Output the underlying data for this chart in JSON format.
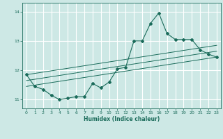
{
  "title": "",
  "xlabel": "Humidex (Indice chaleur)",
  "bg_color": "#cde8e5",
  "line_color": "#1a6b5a",
  "grid_color": "#ffffff",
  "xlim": [
    -0.5,
    23.5
  ],
  "ylim": [
    10.7,
    14.3
  ],
  "yticks": [
    11,
    12,
    13,
    14
  ],
  "xticks": [
    0,
    1,
    2,
    3,
    4,
    5,
    6,
    7,
    8,
    9,
    10,
    11,
    12,
    13,
    14,
    15,
    16,
    17,
    18,
    19,
    20,
    21,
    22,
    23
  ],
  "curve1_x": [
    0,
    1,
    2,
    3,
    4,
    5,
    6,
    7,
    8,
    9,
    10,
    11,
    12,
    13,
    14,
    15,
    16,
    17,
    18,
    19,
    20,
    21,
    22,
    23
  ],
  "curve1_y": [
    11.85,
    11.45,
    11.35,
    11.15,
    11.0,
    11.05,
    11.1,
    11.1,
    11.55,
    11.4,
    11.6,
    12.05,
    12.1,
    13.0,
    13.0,
    13.6,
    13.95,
    13.25,
    13.05,
    13.05,
    13.05,
    12.7,
    12.55,
    12.45
  ],
  "line1_x": [
    0,
    23
  ],
  "line1_y": [
    11.45,
    12.45
  ],
  "line2_x": [
    0,
    23
  ],
  "line2_y": [
    11.65,
    12.65
  ],
  "line3_x": [
    0,
    23
  ],
  "line3_y": [
    11.85,
    12.85
  ]
}
